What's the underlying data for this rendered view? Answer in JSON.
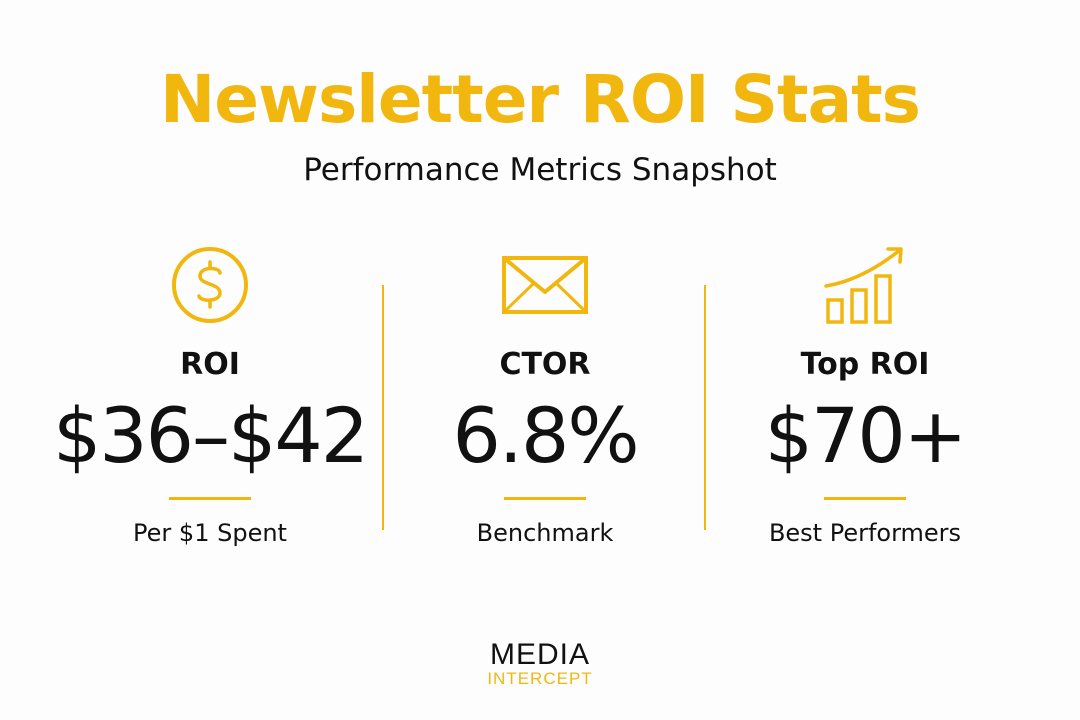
{
  "colors": {
    "accent": "#f2b70f",
    "text": "#111111",
    "background": "#fdfdfd"
  },
  "header": {
    "title": "Newsletter ROI Stats",
    "subtitle": "Performance Metrics Snapshot"
  },
  "stats": [
    {
      "icon": "dollar-circle-icon",
      "label": "ROI",
      "value": "$36–$42",
      "caption": "Per $1 Spent"
    },
    {
      "icon": "envelope-icon",
      "label": "CTOR",
      "value": "6.8%",
      "caption": "Benchmark"
    },
    {
      "icon": "growth-chart-icon",
      "label": "Top ROI",
      "value": "$70+",
      "caption": "Best Performers"
    }
  ],
  "logo": {
    "line1": "MEDIA",
    "line2": "INTERCEPT"
  }
}
